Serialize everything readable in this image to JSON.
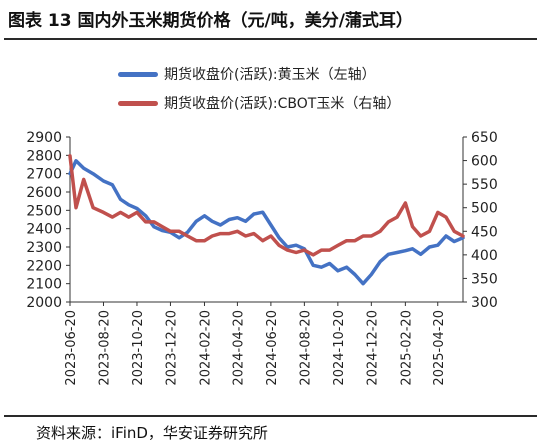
{
  "title": "图表 13  国内外玉米期货价格（元/吨，美分/蒲式耳）",
  "source": "资料来源：iFinD，华安证券研究所",
  "chart_data": {
    "type": "line",
    "x": [
      "2023-06-20",
      "2023-07-01",
      "2023-07-15",
      "2023-08-01",
      "2023-08-20",
      "2023-09-05",
      "2023-09-20",
      "2023-10-05",
      "2023-10-20",
      "2023-11-05",
      "2023-11-20",
      "2023-12-05",
      "2023-12-20",
      "2024-01-05",
      "2024-01-20",
      "2024-02-05",
      "2024-02-20",
      "2024-03-05",
      "2024-03-20",
      "2024-04-05",
      "2024-04-20",
      "2024-05-05",
      "2024-05-20",
      "2024-06-05",
      "2024-06-20",
      "2024-07-05",
      "2024-07-20",
      "2024-08-05",
      "2024-08-20",
      "2024-09-05",
      "2024-09-20",
      "2024-10-05",
      "2024-10-20",
      "2024-11-05",
      "2024-11-20",
      "2024-12-05",
      "2024-12-20",
      "2025-01-05",
      "2025-01-20",
      "2025-02-05",
      "2025-02-20",
      "2025-03-05",
      "2025-03-20",
      "2025-04-05",
      "2025-04-20",
      "2025-05-05",
      "2025-05-20",
      "2025-06-05"
    ],
    "x_tick_labels": [
      "2023-06-20",
      "2023-08-20",
      "2023-10-20",
      "2023-12-20",
      "2024-02-20",
      "2024-04-20",
      "2024-06-20",
      "2024-08-20",
      "2024-10-20",
      "2024-12-20",
      "2025-02-20",
      "2025-04-20"
    ],
    "series": [
      {
        "name": "期货收盘价(活跃):黄玉米（左轴）",
        "axis": "left",
        "color": "#4472C4",
        "values": [
          2700,
          2770,
          2730,
          2700,
          2660,
          2640,
          2560,
          2530,
          2510,
          2470,
          2410,
          2390,
          2380,
          2350,
          2380,
          2440,
          2470,
          2440,
          2420,
          2450,
          2460,
          2440,
          2480,
          2490,
          2420,
          2350,
          2300,
          2310,
          2290,
          2200,
          2190,
          2210,
          2170,
          2190,
          2150,
          2100,
          2150,
          2220,
          2260,
          2270,
          2280,
          2290,
          2260,
          2300,
          2310,
          2360,
          2330,
          2350
        ]
      },
      {
        "name": "期货收盘价(活跃):CBOT玉米（右轴）",
        "axis": "right",
        "color": "#C0504D",
        "values": [
          610,
          500,
          560,
          500,
          490,
          480,
          490,
          480,
          490,
          470,
          470,
          460,
          450,
          450,
          440,
          430,
          430,
          440,
          445,
          445,
          450,
          440,
          445,
          430,
          440,
          420,
          410,
          405,
          410,
          400,
          410,
          410,
          420,
          430,
          430,
          440,
          440,
          450,
          470,
          480,
          510,
          460,
          440,
          450,
          490,
          480,
          450,
          440
        ]
      }
    ],
    "y_left": {
      "min": 2000,
      "max": 2900,
      "ticks": [
        2000,
        2100,
        2200,
        2300,
        2400,
        2500,
        2600,
        2700,
        2800,
        2900
      ]
    },
    "y_right": {
      "min": 300,
      "max": 650,
      "ticks": [
        300,
        350,
        400,
        450,
        500,
        550,
        600,
        650
      ]
    },
    "legend_position": "top-left",
    "grid": false
  }
}
